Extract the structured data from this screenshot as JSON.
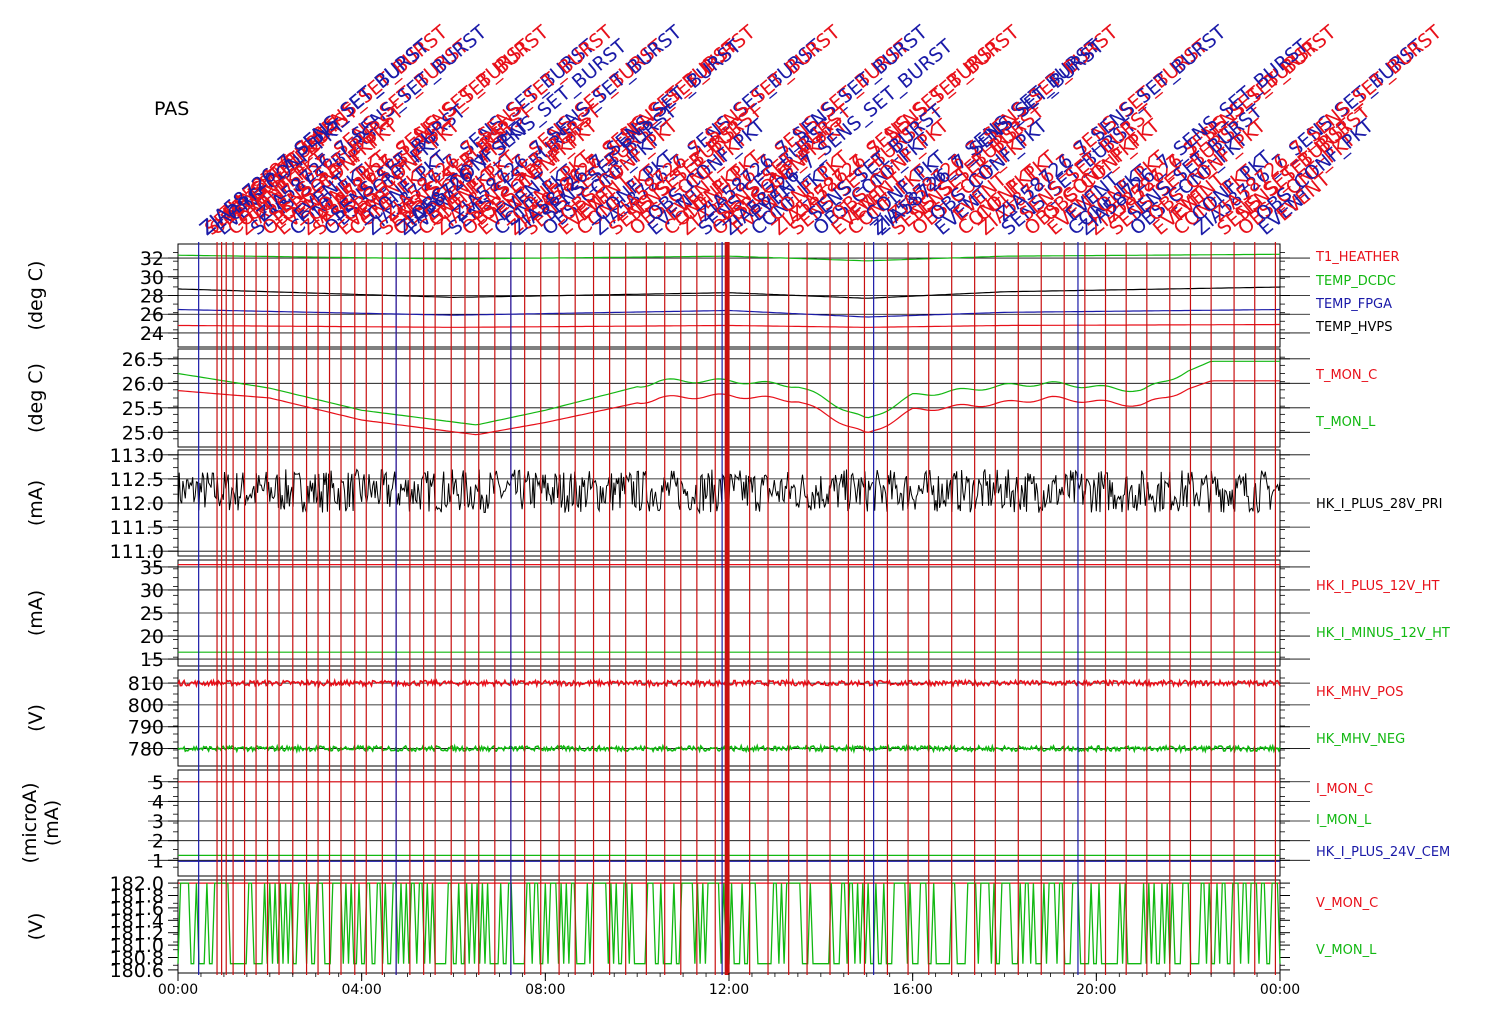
{
  "instrument": "PAS",
  "colors": {
    "red": "#e8101a",
    "green": "#12b812",
    "blue": "#1a1aa8",
    "black": "#000000",
    "event_red": "#c81010"
  },
  "chart_data": {
    "type": "line",
    "x_ticks": [
      "00:00",
      "04:00",
      "08:00",
      "12:00",
      "16:00",
      "20:00",
      "00:00"
    ],
    "x_range_hours": [
      0,
      24
    ],
    "event_markers": {
      "description_labels": [
        "ZIA58726_7_SENS_SET_BURST",
        "SENS_SET_BURST",
        "OBS_CONF_PKT",
        "EVENT",
        "CONF_PKT"
      ],
      "red_hours": [
        0.85,
        0.95,
        1.05,
        1.2,
        1.45,
        1.7,
        1.95,
        2.2,
        2.5,
        2.8,
        3.05,
        3.3,
        3.55,
        3.85,
        4.1,
        4.45,
        4.75,
        5.05,
        5.35,
        5.6,
        5.95,
        6.25,
        6.55,
        6.9,
        7.25,
        7.55,
        7.9,
        8.3,
        8.65,
        9.05,
        9.4,
        9.75,
        10.2,
        10.6,
        10.95,
        11.3,
        11.7,
        12.0,
        12.45,
        12.85,
        13.3,
        13.7,
        14.2,
        14.6,
        14.95,
        15.45,
        15.9,
        16.35,
        16.85,
        17.35,
        17.8,
        18.3,
        18.8,
        19.3,
        19.75,
        20.2,
        20.65,
        21.1,
        21.6,
        22.05,
        22.5,
        23.0,
        23.45,
        23.9
      ],
      "blue_hours": [
        0.45,
        4.75,
        7.25,
        11.85,
        15.15,
        19.6
      ]
    },
    "panels": [
      {
        "id": "temperatures",
        "ylabel": "(deg C)",
        "ylim": [
          22.5,
          33.5
        ],
        "ticks": [
          24,
          26,
          28,
          30,
          32
        ],
        "grid": true,
        "series": [
          {
            "name": "T1_HEATHER",
            "color": "red",
            "x": [
              0,
              6,
              12,
              15,
              18,
              24
            ],
            "values": [
              24.8,
              24.6,
              24.8,
              24.6,
              24.8,
              24.9
            ]
          },
          {
            "name": "TEMP_DCDC",
            "color": "green",
            "x": [
              0,
              6,
              12,
              15,
              18,
              24
            ],
            "values": [
              32.3,
              31.9,
              32.2,
              31.7,
              32.2,
              32.4
            ]
          },
          {
            "name": "TEMP_FPGA",
            "color": "blue",
            "x": [
              0,
              6,
              12,
              15,
              18,
              24
            ],
            "values": [
              26.5,
              25.9,
              26.4,
              25.7,
              26.2,
              26.5
            ]
          },
          {
            "name": "TEMP_HVPS",
            "color": "black",
            "x": [
              0,
              6,
              12,
              15,
              18,
              24
            ],
            "values": [
              28.7,
              27.8,
              28.3,
              27.7,
              28.4,
              28.9
            ]
          }
        ]
      },
      {
        "id": "monitor_temps",
        "ylabel": "(deg C)",
        "ylim": [
          24.7,
          26.7
        ],
        "ticks": [
          25.0,
          25.5,
          26.0,
          26.5
        ],
        "tick_labels": [
          "25.0",
          "25.5",
          "26.0",
          "26.5"
        ],
        "grid": true,
        "series": [
          {
            "name": "T_MON_C",
            "color": "red",
            "x": [
              0,
              2,
              4,
              6.5,
              8,
              10.5,
              12,
              13.5,
              15,
              16,
              18,
              19,
              21,
              22.5,
              24
            ],
            "values": [
              25.85,
              25.7,
              25.25,
              24.95,
              25.2,
              25.7,
              25.75,
              25.65,
              24.95,
              25.45,
              25.6,
              25.7,
              25.55,
              26.05,
              26.05
            ]
          },
          {
            "name": "T_MON_L",
            "color": "green",
            "x": [
              0,
              2,
              4,
              6.5,
              8,
              10.5,
              12,
              13.5,
              15,
              16,
              18,
              19,
              21,
              22.5,
              24
            ],
            "values": [
              26.2,
              25.9,
              25.45,
              25.15,
              25.45,
              26.05,
              26.05,
              25.95,
              25.25,
              25.75,
              25.95,
              26.0,
              25.85,
              26.45,
              26.45
            ]
          }
        ]
      },
      {
        "id": "primary_current",
        "ylabel": "(mA)",
        "ylim": [
          110.9,
          113.1
        ],
        "ticks": [
          111.0,
          111.5,
          112.0,
          112.5,
          113.0
        ],
        "tick_labels": [
          "111.0",
          "111.5",
          "112.0",
          "112.5",
          "113.0"
        ],
        "grid": true,
        "series": [
          {
            "name": "HK_I_PLUS_28V_PRI",
            "color": "black",
            "mean": 112.25,
            "noise": 0.45
          }
        ]
      },
      {
        "id": "ht_currents",
        "ylabel": "(mA)",
        "ylim": [
          13.5,
          36.5
        ],
        "ticks": [
          15,
          20,
          25,
          30,
          35
        ],
        "grid": true,
        "series": [
          {
            "name": "HK_I_PLUS_12V_HT",
            "color": "red",
            "x": [
              0,
              24
            ],
            "values": [
              35.5,
              35.5
            ]
          },
          {
            "name": "HK_I_MINUS_12V_HT",
            "color": "green",
            "x": [
              0,
              24
            ],
            "values": [
              16.5,
              16.5
            ]
          }
        ]
      },
      {
        "id": "mhv",
        "ylabel": "(V)",
        "ylim": [
          772,
          816
        ],
        "ticks": [
          780,
          790,
          800,
          810
        ],
        "tick_labels": [
          "780",
          "790",
          "800",
          "810"
        ],
        "grid": true,
        "series": [
          {
            "name": "HK_MHV_POS",
            "color": "red",
            "mean": 810,
            "noise": 1.2
          },
          {
            "name": "HK_MHV_NEG",
            "color": "green",
            "mean": 780,
            "noise": 1.2
          }
        ]
      },
      {
        "id": "currents_micro",
        "ylabel": "(microA)",
        "ylabel2": "(mA)",
        "ylim": [
          0.2,
          5.6
        ],
        "ticks": [
          1,
          2,
          3,
          4,
          5
        ],
        "grid": true,
        "series": [
          {
            "name": "I_MON_C",
            "color": "red",
            "x": [
              0,
              24
            ],
            "values": [
              5.0,
              5.0
            ]
          },
          {
            "name": "I_MON_L",
            "color": "green",
            "x": [
              0,
              24
            ],
            "values": [
              1.25,
              1.25
            ]
          },
          {
            "name": "HK_I_PLUS_24V_CEM",
            "color": "blue",
            "x": [
              0,
              24
            ],
            "values": [
              0.95,
              0.95
            ]
          }
        ]
      },
      {
        "id": "voltage_monitor",
        "ylabel": "(V)",
        "ylim": [
          180.55,
          182.05
        ],
        "ticks": [
          180.6,
          180.8,
          181.0,
          181.2,
          181.4,
          181.6,
          181.8,
          182.0
        ],
        "tick_labels": [
          "180.6",
          "180.8",
          "181.0",
          "181.2",
          "181.4",
          "181.6",
          "181.8",
          "182.0"
        ],
        "grid": false,
        "series": [
          {
            "name": "V_MON_C",
            "color": "red",
            "x": [
              0,
              24
            ],
            "values": [
              182.0,
              182.0
            ]
          },
          {
            "name": "V_MON_L",
            "color": "green",
            "min": 180.7,
            "max": 182.0
          }
        ]
      }
    ]
  }
}
